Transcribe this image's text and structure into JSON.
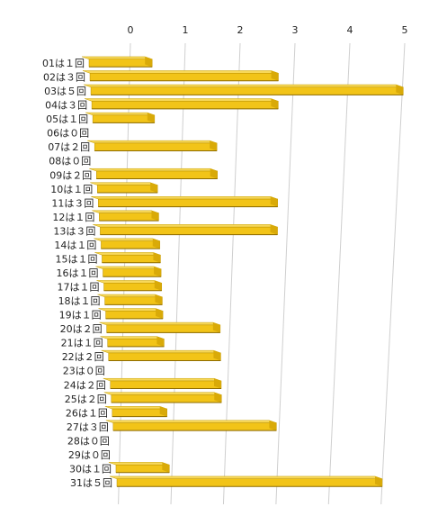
{
  "chart_data": {
    "type": "bar",
    "orientation": "horizontal",
    "title": "",
    "xlabel": "",
    "ylabel": "",
    "xlim": [
      0,
      5
    ],
    "x_ticks": [
      "0",
      "1",
      "2",
      "3",
      "4",
      "5"
    ],
    "grid": true,
    "legend": "none",
    "bar_color": "#f2c418",
    "categories": [
      "01は１回",
      "02は３回",
      "03は５回",
      "04は３回",
      "05は１回",
      "06は０回",
      "07は２回",
      "08は０回",
      "09は２回",
      "10は１回",
      "11は３回",
      "12は１回",
      "13は３回",
      "14は１回",
      "15は１回",
      "16は１回",
      "17は１回",
      "18は１回",
      "19は１回",
      "20は２回",
      "21は１回",
      "22は２回",
      "23は０回",
      "24は２回",
      "25は２回",
      "26は１回",
      "27は３回",
      "28は０回",
      "29は０回",
      "30は１回",
      "31は５回"
    ],
    "values": [
      1,
      3,
      5,
      3,
      1,
      0,
      2,
      0,
      2,
      1,
      3,
      1,
      3,
      1,
      1,
      1,
      1,
      1,
      1,
      2,
      1,
      2,
      0,
      2,
      2,
      1,
      3,
      0,
      0,
      1,
      5
    ]
  }
}
